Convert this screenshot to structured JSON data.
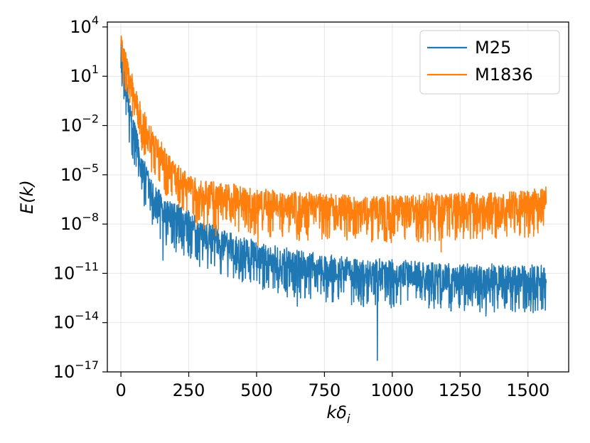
{
  "chart_data": {
    "type": "line",
    "title": "",
    "xlabel_base": "kδ",
    "xlabel_sub": "i",
    "ylabel": "E(k)",
    "y_scale": "log",
    "xlim": [
      -50,
      1650
    ],
    "ylim_log10": [
      -17,
      4.3
    ],
    "grid": true,
    "legend_position": "top-right",
    "x_ticks": [
      "0",
      "250",
      "500",
      "750",
      "1000",
      "1250",
      "1500"
    ],
    "x_tick_values": [
      0,
      250,
      500,
      750,
      1000,
      1250,
      1500
    ],
    "y_ticks": [
      {
        "exp": -17,
        "base": "10",
        "sup": "−17"
      },
      {
        "exp": -14,
        "base": "10",
        "sup": "−14"
      },
      {
        "exp": -11,
        "base": "10",
        "sup": "−11"
      },
      {
        "exp": -8,
        "base": "10",
        "sup": "−8"
      },
      {
        "exp": -5,
        "base": "10",
        "sup": "−5"
      },
      {
        "exp": -2,
        "base": "10",
        "sup": "−2"
      },
      {
        "exp": 1,
        "base": "10",
        "sup": "1"
      },
      {
        "exp": 4,
        "base": "10",
        "sup": "4"
      }
    ],
    "k_max": 1567,
    "series": [
      {
        "name": "M25",
        "color": "#1f77b4",
        "trend_log10": [
          [
            0,
            3.0
          ],
          [
            15,
            1.0
          ],
          [
            30,
            -1.0
          ],
          [
            50,
            -2.5
          ],
          [
            80,
            -4.5
          ],
          [
            100,
            -5.5
          ],
          [
            150,
            -7.0
          ],
          [
            200,
            -7.6
          ],
          [
            300,
            -8.6
          ],
          [
            400,
            -9.3
          ],
          [
            500,
            -9.9
          ],
          [
            600,
            -10.3
          ],
          [
            700,
            -10.6
          ],
          [
            800,
            -10.7
          ],
          [
            900,
            -11.0
          ],
          [
            1000,
            -11.0
          ],
          [
            1100,
            -11.1
          ],
          [
            1200,
            -11.2
          ],
          [
            1300,
            -11.3
          ],
          [
            1400,
            -11.3
          ],
          [
            1567,
            -11.3
          ]
        ],
        "spikes_log10": [
          [
            155,
            -10.2
          ],
          [
            352,
            -9.0
          ],
          [
            650,
            -13.0
          ],
          [
            945,
            -16.3
          ],
          [
            1250,
            -12.9
          ],
          [
            1345,
            -13.6
          ]
        ]
      },
      {
        "name": "M1836",
        "color": "#ff7f0e",
        "trend_log10": [
          [
            0,
            3.3
          ],
          [
            15,
            2.2
          ],
          [
            30,
            1.0
          ],
          [
            60,
            -0.8
          ],
          [
            100,
            -2.5
          ],
          [
            150,
            -3.9
          ],
          [
            200,
            -5.0
          ],
          [
            250,
            -5.8
          ],
          [
            300,
            -6.2
          ],
          [
            400,
            -6.4
          ],
          [
            500,
            -6.6
          ],
          [
            600,
            -6.8
          ],
          [
            700,
            -6.9
          ],
          [
            800,
            -7.0
          ],
          [
            900,
            -7.1
          ],
          [
            1000,
            -7.1
          ],
          [
            1100,
            -7.0
          ],
          [
            1200,
            -7.0
          ],
          [
            1300,
            -6.9
          ],
          [
            1400,
            -6.9
          ],
          [
            1567,
            -6.6
          ]
        ],
        "spikes_log10": [
          [
            350,
            -8.7
          ],
          [
            505,
            -9.3
          ],
          [
            657,
            -9.0
          ],
          [
            1180,
            -9.7
          ],
          [
            1437,
            -8.2
          ]
        ]
      }
    ]
  }
}
